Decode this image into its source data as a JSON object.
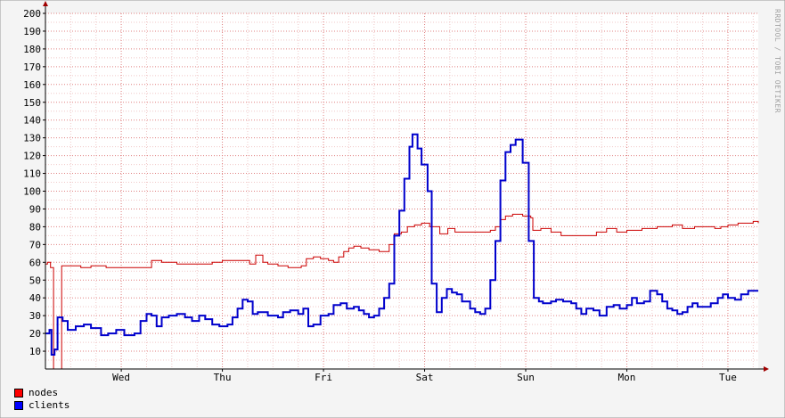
{
  "watermark": "RRDTOOL / TOBI OETIKER",
  "legend": {
    "nodes": {
      "label": "nodes",
      "color": "#ff0000"
    },
    "clients": {
      "label": "clients",
      "color": "#0000ff"
    }
  },
  "chart_data": {
    "type": "line",
    "title": "",
    "xlabel": "",
    "ylabel": "",
    "ylim": [
      0,
      200
    ],
    "yticks": [
      10,
      20,
      30,
      40,
      50,
      60,
      70,
      80,
      90,
      100,
      110,
      120,
      130,
      140,
      150,
      160,
      170,
      180,
      190,
      200
    ],
    "xticks": [
      "Wed",
      "Thu",
      "Fri",
      "Sat",
      "Sun",
      "Mon",
      "Tue"
    ],
    "x_unit": "days",
    "x_domain": [
      0,
      7.05
    ],
    "xtick_positions": [
      0.75,
      1.75,
      2.75,
      3.75,
      4.75,
      5.75,
      6.75
    ],
    "grid": true,
    "legend_position": "bottom-left",
    "series": [
      {
        "name": "nodes",
        "color": "#cc0000",
        "points": [
          [
            0.0,
            59
          ],
          [
            0.02,
            60
          ],
          [
            0.05,
            57
          ],
          [
            0.08,
            0
          ],
          [
            0.13,
            0
          ],
          [
            0.16,
            58
          ],
          [
            0.2,
            58
          ],
          [
            0.35,
            57
          ],
          [
            0.45,
            58
          ],
          [
            0.6,
            57
          ],
          [
            0.75,
            57
          ],
          [
            0.9,
            57
          ],
          [
            1.05,
            61
          ],
          [
            1.15,
            60
          ],
          [
            1.3,
            59
          ],
          [
            1.55,
            59
          ],
          [
            1.65,
            60
          ],
          [
            1.75,
            61
          ],
          [
            1.95,
            61
          ],
          [
            2.02,
            59
          ],
          [
            2.08,
            64
          ],
          [
            2.15,
            60
          ],
          [
            2.2,
            59
          ],
          [
            2.3,
            58
          ],
          [
            2.4,
            57
          ],
          [
            2.53,
            58
          ],
          [
            2.58,
            62
          ],
          [
            2.65,
            63
          ],
          [
            2.72,
            62
          ],
          [
            2.8,
            61
          ],
          [
            2.85,
            60
          ],
          [
            2.9,
            63
          ],
          [
            2.95,
            66
          ],
          [
            3.0,
            68
          ],
          [
            3.05,
            69
          ],
          [
            3.12,
            68
          ],
          [
            3.2,
            67
          ],
          [
            3.3,
            66
          ],
          [
            3.4,
            70
          ],
          [
            3.45,
            76
          ],
          [
            3.52,
            77
          ],
          [
            3.58,
            80
          ],
          [
            3.65,
            81
          ],
          [
            3.72,
            82
          ],
          [
            3.8,
            80
          ],
          [
            3.9,
            76
          ],
          [
            3.98,
            79
          ],
          [
            4.05,
            77
          ],
          [
            4.2,
            77
          ],
          [
            4.35,
            77
          ],
          [
            4.4,
            78
          ],
          [
            4.45,
            80
          ],
          [
            4.5,
            84
          ],
          [
            4.55,
            86
          ],
          [
            4.62,
            87
          ],
          [
            4.72,
            86
          ],
          [
            4.8,
            85
          ],
          [
            4.82,
            78
          ],
          [
            4.9,
            79
          ],
          [
            5.0,
            77
          ],
          [
            5.1,
            75
          ],
          [
            5.3,
            75
          ],
          [
            5.45,
            77
          ],
          [
            5.55,
            79
          ],
          [
            5.65,
            77
          ],
          [
            5.75,
            78
          ],
          [
            5.9,
            79
          ],
          [
            6.05,
            80
          ],
          [
            6.2,
            81
          ],
          [
            6.3,
            79
          ],
          [
            6.42,
            80
          ],
          [
            6.55,
            80
          ],
          [
            6.62,
            79
          ],
          [
            6.68,
            80
          ],
          [
            6.75,
            81
          ],
          [
            6.85,
            82
          ],
          [
            6.93,
            82
          ],
          [
            7.0,
            83
          ],
          [
            7.05,
            82
          ]
        ]
      },
      {
        "name": "clients",
        "color": "#0000cc",
        "points": [
          [
            0.0,
            20
          ],
          [
            0.04,
            22
          ],
          [
            0.06,
            8
          ],
          [
            0.09,
            11
          ],
          [
            0.12,
            29
          ],
          [
            0.17,
            27
          ],
          [
            0.22,
            22
          ],
          [
            0.3,
            24
          ],
          [
            0.38,
            25
          ],
          [
            0.45,
            23
          ],
          [
            0.55,
            19
          ],
          [
            0.62,
            20
          ],
          [
            0.7,
            22
          ],
          [
            0.78,
            19
          ],
          [
            0.88,
            20
          ],
          [
            0.94,
            27
          ],
          [
            1.0,
            31
          ],
          [
            1.05,
            30
          ],
          [
            1.1,
            24
          ],
          [
            1.15,
            29
          ],
          [
            1.22,
            30
          ],
          [
            1.3,
            31
          ],
          [
            1.38,
            29
          ],
          [
            1.45,
            27
          ],
          [
            1.52,
            30
          ],
          [
            1.58,
            28
          ],
          [
            1.65,
            25
          ],
          [
            1.72,
            24
          ],
          [
            1.8,
            25
          ],
          [
            1.85,
            29
          ],
          [
            1.9,
            34
          ],
          [
            1.95,
            39
          ],
          [
            2.0,
            38
          ],
          [
            2.05,
            31
          ],
          [
            2.1,
            32
          ],
          [
            2.2,
            30
          ],
          [
            2.3,
            29
          ],
          [
            2.35,
            32
          ],
          [
            2.42,
            33
          ],
          [
            2.5,
            31
          ],
          [
            2.55,
            34
          ],
          [
            2.6,
            24
          ],
          [
            2.65,
            25
          ],
          [
            2.72,
            30
          ],
          [
            2.8,
            31
          ],
          [
            2.85,
            36
          ],
          [
            2.92,
            37
          ],
          [
            2.98,
            34
          ],
          [
            3.05,
            35
          ],
          [
            3.1,
            33
          ],
          [
            3.15,
            31
          ],
          [
            3.2,
            29
          ],
          [
            3.25,
            30
          ],
          [
            3.3,
            34
          ],
          [
            3.35,
            40
          ],
          [
            3.4,
            48
          ],
          [
            3.45,
            75
          ],
          [
            3.5,
            89
          ],
          [
            3.55,
            107
          ],
          [
            3.6,
            125
          ],
          [
            3.63,
            132
          ],
          [
            3.68,
            124
          ],
          [
            3.72,
            115
          ],
          [
            3.78,
            100
          ],
          [
            3.82,
            48
          ],
          [
            3.87,
            32
          ],
          [
            3.92,
            40
          ],
          [
            3.97,
            45
          ],
          [
            4.02,
            43
          ],
          [
            4.07,
            42
          ],
          [
            4.12,
            38
          ],
          [
            4.2,
            34
          ],
          [
            4.25,
            32
          ],
          [
            4.3,
            31
          ],
          [
            4.35,
            34
          ],
          [
            4.4,
            50
          ],
          [
            4.45,
            72
          ],
          [
            4.5,
            106
          ],
          [
            4.55,
            122
          ],
          [
            4.6,
            126
          ],
          [
            4.65,
            129
          ],
          [
            4.72,
            116
          ],
          [
            4.78,
            72
          ],
          [
            4.83,
            40
          ],
          [
            4.88,
            38
          ],
          [
            4.92,
            37
          ],
          [
            5.0,
            38
          ],
          [
            5.05,
            39
          ],
          [
            5.12,
            38
          ],
          [
            5.2,
            37
          ],
          [
            5.25,
            34
          ],
          [
            5.3,
            31
          ],
          [
            5.35,
            34
          ],
          [
            5.42,
            33
          ],
          [
            5.48,
            30
          ],
          [
            5.55,
            35
          ],
          [
            5.62,
            36
          ],
          [
            5.68,
            34
          ],
          [
            5.75,
            36
          ],
          [
            5.8,
            40
          ],
          [
            5.85,
            37
          ],
          [
            5.92,
            38
          ],
          [
            5.98,
            44
          ],
          [
            6.05,
            42
          ],
          [
            6.1,
            38
          ],
          [
            6.15,
            34
          ],
          [
            6.2,
            33
          ],
          [
            6.25,
            31
          ],
          [
            6.3,
            32
          ],
          [
            6.35,
            35
          ],
          [
            6.4,
            37
          ],
          [
            6.45,
            35
          ],
          [
            6.52,
            35
          ],
          [
            6.58,
            37
          ],
          [
            6.65,
            40
          ],
          [
            6.7,
            42
          ],
          [
            6.75,
            40
          ],
          [
            6.82,
            39
          ],
          [
            6.88,
            42
          ],
          [
            6.95,
            44
          ],
          [
            7.0,
            44
          ],
          [
            7.05,
            44
          ]
        ]
      }
    ]
  }
}
